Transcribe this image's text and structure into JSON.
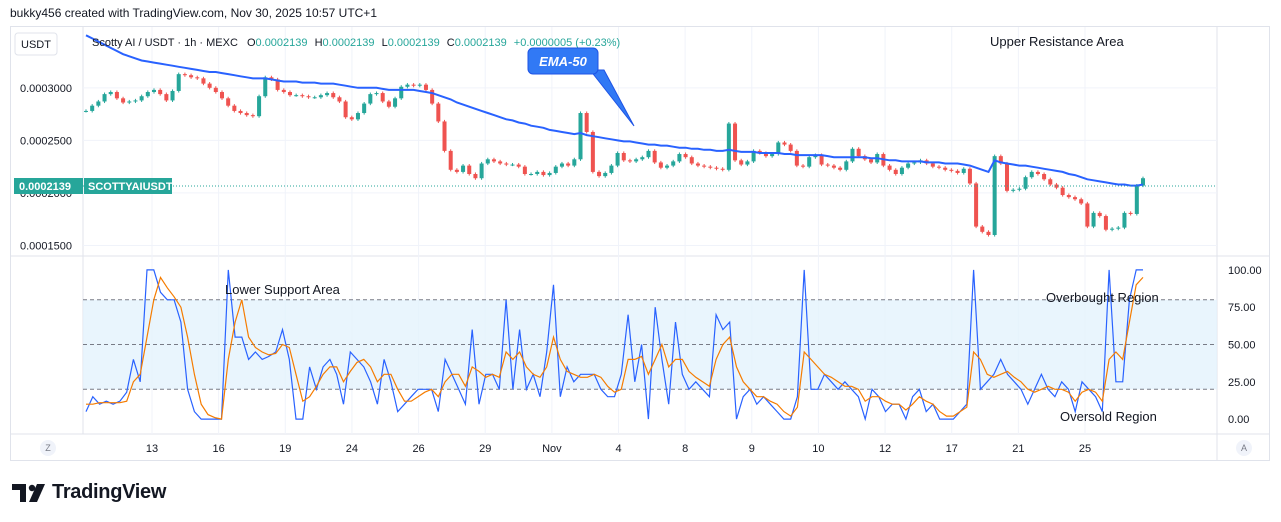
{
  "credit": "bukky456 created with TradingView.com, Nov 30, 2025 10:57 UTC+1",
  "currency_button": "USDT",
  "legend": {
    "symbol": "Scotty AI / USDT · 1h · MEXC",
    "o_label": "O",
    "o_value": "0.0002139",
    "h_label": "H",
    "h_value": "0.0002139",
    "l_label": "L",
    "l_value": "0.0002139",
    "c_label": "C",
    "c_value": "0.0002139",
    "change": "+0.0000005 (+0.23%)"
  },
  "price_tag": {
    "value": "0.0002139",
    "symbol": "SCOTTYAIUSDT"
  },
  "annotations": {
    "ema": "EMA-50",
    "upper": "Upper Resistance Area",
    "lower": "Lower Support Area",
    "overbought": "Overbought Region",
    "oversold": "Oversold Region"
  },
  "scale_buttons": {
    "left": "Z",
    "right": "A"
  },
  "footer": {
    "brand": "TradingView"
  },
  "colors": {
    "up": "#26a69a",
    "down": "#ef5350",
    "ema": "#2962ff",
    "k_line": "#2962ff",
    "d_line": "#f57c00",
    "band": "#e3f2fd"
  },
  "chart_data": [
    {
      "type": "candlestick",
      "ylim": [
        0.00014,
        0.000355
      ],
      "yticks": [
        0.00015,
        0.0002,
        0.00025,
        0.0003
      ],
      "ytick_labels": [
        "0.0001500",
        "0.0002000",
        "0.0002500",
        "0.0003000"
      ],
      "xtick_labels": [
        "13",
        "16",
        "19",
        "24",
        "26",
        "29",
        "Nov",
        "4",
        "8",
        "9",
        "10",
        "12",
        "17",
        "21",
        "25"
      ],
      "close": [
        0.000278,
        0.000283,
        0.000287,
        0.000294,
        0.000296,
        0.00029,
        0.000286,
        0.000287,
        0.000288,
        0.000292,
        0.000296,
        0.000298,
        0.000294,
        0.000288,
        0.000297,
        0.000313,
        0.000312,
        0.00031,
        0.000309,
        0.000304,
        0.0003,
        0.000296,
        0.00029,
        0.000283,
        0.000278,
        0.000276,
        0.000274,
        0.000273,
        0.000292,
        0.00031,
        0.000308,
        0.000298,
        0.000296,
        0.000293,
        0.000293,
        0.000292,
        0.000291,
        0.000291,
        0.000293,
        0.000295,
        0.000291,
        0.000287,
        0.000272,
        0.00027,
        0.000276,
        0.000285,
        0.000294,
        0.000295,
        0.000287,
        0.000282,
        0.00029,
        0.000301,
        0.000303,
        0.000302,
        0.000303,
        0.000298,
        0.000285,
        0.000268,
        0.00024,
        0.000222,
        0.00022,
        0.000226,
        0.000218,
        0.000214,
        0.000228,
        0.000232,
        0.00023,
        0.000228,
        0.000227,
        0.000227,
        0.000225,
        0.000218,
        0.000218,
        0.00022,
        0.000217,
        0.000219,
        0.000225,
        0.000228,
        0.000226,
        0.000232,
        0.000276,
        0.000258,
        0.00022,
        0.000216,
        0.000219,
        0.000226,
        0.000238,
        0.000231,
        0.00023,
        0.000232,
        0.000234,
        0.00024,
        0.000229,
        0.000224,
        0.000226,
        0.00023,
        0.000237,
        0.000234,
        0.000228,
        0.000226,
        0.000225,
        0.000224,
        0.000223,
        0.000222,
        0.000266,
        0.000231,
        0.000227,
        0.00023,
        0.00024,
        0.000238,
        0.000235,
        0.000237,
        0.000248,
        0.000246,
        0.00024,
        0.000226,
        0.000225,
        0.000234,
        0.000236,
        0.000227,
        0.000226,
        0.000224,
        0.000222,
        0.00023,
        0.000242,
        0.000235,
        0.000232,
        0.000229,
        0.000237,
        0.000226,
        0.000222,
        0.000218,
        0.000224,
        0.000228,
        0.000229,
        0.000231,
        0.000228,
        0.000225,
        0.000224,
        0.000222,
        0.000221,
        0.000219,
        0.000223,
        0.000209,
        0.000168,
        0.000163,
        0.00016,
        0.000235,
        0.000228,
        0.000202,
        0.000203,
        0.000204,
        0.000215,
        0.00022,
        0.000218,
        0.000213,
        0.000208,
        0.000205,
        0.000198,
        0.000196,
        0.000194,
        0.00019,
        0.000168,
        0.000181,
        0.000178,
        0.000165,
        0.000166,
        0.000167,
        0.000181,
        0.00018,
        0.000207,
        0.000214
      ],
      "ema50": [
        0.00035,
        0.000347,
        0.000344,
        0.000341,
        0.000338,
        0.000335,
        0.000332,
        0.00033,
        0.000328,
        0.000326,
        0.000325,
        0.000324,
        0.000323,
        0.000322,
        0.000321,
        0.00032,
        0.000319,
        0.000318,
        0.000317,
        0.000316,
        0.000315,
        0.000315,
        0.000314,
        0.000313,
        0.000312,
        0.000311,
        0.00031,
        0.000309,
        0.000309,
        0.000309,
        0.000308,
        0.000307,
        0.000306,
        0.000306,
        0.000306,
        0.000305,
        0.000305,
        0.000305,
        0.000304,
        0.000304,
        0.000304,
        0.000303,
        0.000302,
        0.000301,
        0.0003,
        0.0003,
        0.0003,
        0.0003,
        0.000299,
        0.000298,
        0.000298,
        0.000298,
        0.000298,
        0.000298,
        0.000297,
        0.000296,
        0.000295,
        0.000293,
        0.000291,
        0.000289,
        0.000286,
        0.000284,
        0.000282,
        0.00028,
        0.000278,
        0.000276,
        0.000274,
        0.000272,
        0.00027,
        0.000269,
        0.000267,
        0.000266,
        0.000264,
        0.000263,
        0.000262,
        0.00026,
        0.000259,
        0.000258,
        0.000257,
        0.000256,
        0.000257,
        0.000255,
        0.000254,
        0.000253,
        0.000252,
        0.000251,
        0.00025,
        0.000249,
        0.000249,
        0.000248,
        0.000247,
        0.000246,
        0.000246,
        0.000245,
        0.000245,
        0.000244,
        0.000243,
        0.000243,
        0.000242,
        0.000242,
        0.000241,
        0.000241,
        0.00024,
        0.00024,
        0.000241,
        0.00024,
        0.000239,
        0.000239,
        0.000239,
        0.000238,
        0.000238,
        0.000238,
        0.000238,
        0.000237,
        0.000237,
        0.000236,
        0.000236,
        0.000236,
        0.000236,
        0.000236,
        0.000235,
        0.000234,
        0.000234,
        0.000234,
        0.000234,
        0.000234,
        0.000234,
        0.000233,
        0.000233,
        0.000232,
        0.000231,
        0.000231,
        0.00023,
        0.00023,
        0.00023,
        0.00023,
        0.000229,
        0.000229,
        0.000229,
        0.000228,
        0.000228,
        0.000228,
        0.000227,
        0.000226,
        0.000224,
        0.000222,
        0.00022,
        0.000231,
        0.000229,
        0.000228,
        0.000227,
        0.000226,
        0.000226,
        0.000225,
        0.000224,
        0.000223,
        0.000222,
        0.000221,
        0.00022,
        0.000218,
        0.000217,
        0.000215,
        0.000213,
        0.000212,
        0.000211,
        0.00021,
        0.000209,
        0.000208,
        0.000208,
        0.000207,
        0.000207,
        0.000208
      ]
    },
    {
      "type": "line",
      "ylim": [
        -10,
        108
      ],
      "yticks": [
        0,
        25,
        50,
        75,
        100
      ],
      "ytick_labels": [
        "0.00",
        "25.00",
        "50.00",
        "75.00",
        "100.00"
      ],
      "bands": [
        20,
        50,
        80
      ],
      "series": [
        {
          "values": [
            5,
            15,
            10,
            12,
            10,
            12,
            18,
            40,
            25,
            100,
            100,
            85,
            80,
            80,
            65,
            20,
            5,
            0,
            0,
            0,
            0,
            100,
            55,
            55,
            40,
            45,
            40,
            42,
            45,
            60,
            40,
            0,
            0,
            35,
            20,
            35,
            40,
            30,
            10,
            45,
            40,
            35,
            25,
            10,
            40,
            25,
            5,
            10,
            15,
            20,
            20,
            20,
            5,
            40,
            30,
            20,
            10,
            60,
            10,
            30,
            30,
            20,
            80,
            20,
            60,
            20,
            30,
            15,
            45,
            90,
            15,
            35,
            25,
            30,
            30,
            30,
            20,
            15,
            15,
            30,
            70,
            25,
            50,
            0,
            75,
            40,
            10,
            65,
            30,
            20,
            25,
            20,
            15,
            70,
            60,
            65,
            0,
            15,
            20,
            10,
            15,
            10,
            5,
            0,
            0,
            15,
            100,
            20,
            20,
            30,
            25,
            20,
            25,
            20,
            15,
            0,
            20,
            15,
            5,
            10,
            10,
            0,
            15,
            20,
            5,
            10,
            0,
            0,
            0,
            5,
            10,
            100,
            20,
            25,
            30,
            40,
            30,
            25,
            20,
            10,
            20,
            30,
            20,
            15,
            25,
            20,
            5,
            25,
            20,
            15,
            5,
            100,
            25,
            25,
            80,
            100,
            100
          ]
        },
        {
          "values": [
            10,
            10,
            11,
            11,
            11,
            11,
            12,
            25,
            30,
            55,
            80,
            95,
            88,
            82,
            75,
            55,
            30,
            10,
            3,
            1,
            0,
            40,
            65,
            80,
            55,
            48,
            45,
            43,
            44,
            50,
            48,
            30,
            12,
            15,
            22,
            30,
            35,
            35,
            25,
            32,
            38,
            40,
            35,
            25,
            30,
            30,
            20,
            12,
            12,
            15,
            18,
            20,
            15,
            25,
            30,
            30,
            22,
            35,
            32,
            28,
            30,
            28,
            45,
            40,
            45,
            35,
            30,
            28,
            35,
            55,
            40,
            32,
            30,
            28,
            28,
            30,
            28,
            22,
            18,
            20,
            40,
            40,
            42,
            30,
            40,
            50,
            35,
            40,
            40,
            32,
            28,
            25,
            22,
            40,
            50,
            55,
            35,
            25,
            20,
            15,
            15,
            12,
            10,
            5,
            2,
            8,
            45,
            40,
            35,
            30,
            28,
            25,
            22,
            22,
            20,
            12,
            15,
            15,
            12,
            10,
            10,
            6,
            10,
            15,
            12,
            10,
            5,
            2,
            2,
            5,
            8,
            45,
            40,
            30,
            28,
            30,
            32,
            28,
            25,
            20,
            18,
            20,
            22,
            20,
            20,
            18,
            12,
            18,
            20,
            18,
            12,
            40,
            45,
            40,
            65,
            90,
            95
          ]
        }
      ]
    }
  ]
}
